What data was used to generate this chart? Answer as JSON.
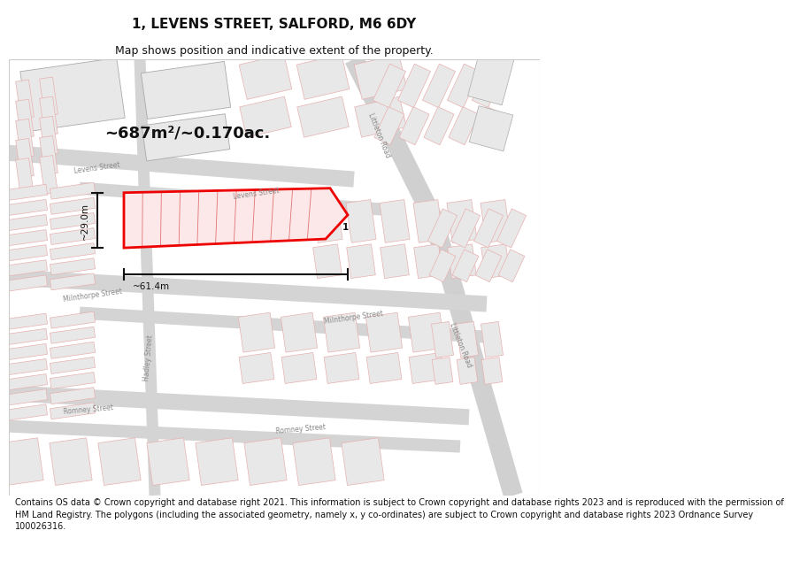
{
  "title": "1, LEVENS STREET, SALFORD, M6 6DY",
  "subtitle": "Map shows position and indicative extent of the property.",
  "footer_lines": [
    "Contains OS data © Crown copyright and database right 2021. This information is subject to Crown copyright and database rights 2023 and is reproduced with the permission of",
    "HM Land Registry. The polygons (including the associated geometry, namely x, y co-ordinates) are subject to Crown copyright and database rights 2023 Ordnance Survey",
    "100026316."
  ],
  "area_text": "~687m²/~0.170ac.",
  "width_text": "~61.4m",
  "height_text": "~29.0m",
  "label_text": "1",
  "bg_color": "#ffffff",
  "map_bg": "#ffffff",
  "bld_fill": "#e8e8e8",
  "bld_stroke_light": "#e8b0b0",
  "bld_stroke_dark": "#aaaaaa",
  "prop_fill": "#fce8e8",
  "prop_stroke": "#ee0000",
  "road_fill": "#d4d4d4",
  "road_line": "#cccccc",
  "street_color": "#888888",
  "dim_color": "#111111",
  "title_fs": 11,
  "subtitle_fs": 9,
  "footer_fs": 7.0,
  "street_fs": 5.5,
  "area_fs": 13,
  "dim_fs": 7.5
}
